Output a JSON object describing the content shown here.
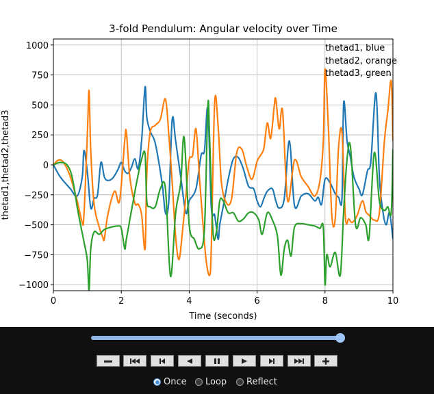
{
  "chart_data": {
    "type": "line",
    "title": "3-fold Pendulum: Angular velocity over Time",
    "xlabel": "Time (seconds)",
    "ylabel": "thetad1,thetad2,thetad3",
    "xlim": [
      0,
      10
    ],
    "ylim": [
      -1050,
      1050
    ],
    "xticks": [
      0,
      2,
      4,
      6,
      8,
      10
    ],
    "yticks": [
      -1000,
      -750,
      -500,
      -250,
      0,
      250,
      500,
      750,
      1000
    ],
    "xtick_labels": [
      "0",
      "2",
      "4",
      "6",
      "8",
      "10"
    ],
    "ytick_labels": [
      "−1000",
      "−750",
      "−500",
      "−250",
      "0",
      "250",
      "500",
      "750",
      "1000"
    ],
    "grid": true,
    "annotation": [
      "thetad1, blue",
      "thetad2, orange",
      "thetad3, green"
    ],
    "series": [
      {
        "color": "#1f77b4",
        "x": [
          0,
          0.2,
          0.5,
          0.7,
          0.85,
          0.9,
          1.0,
          1.1,
          1.2,
          1.3,
          1.4,
          1.5,
          1.6,
          1.75,
          1.9,
          2.0,
          2.1,
          2.2,
          2.3,
          2.4,
          2.5,
          2.6,
          2.7,
          2.75,
          2.85,
          3.0,
          3.2,
          3.3,
          3.4,
          3.5,
          3.6,
          3.75,
          3.9,
          4.0,
          4.2,
          4.35,
          4.45,
          4.55,
          4.65,
          4.75,
          4.85,
          4.9,
          5.0,
          5.15,
          5.3,
          5.45,
          5.6,
          5.75,
          5.9,
          6.0,
          6.1,
          6.2,
          6.3,
          6.45,
          6.55,
          6.65,
          6.8,
          6.95,
          7.1,
          7.3,
          7.5,
          7.7,
          7.8,
          7.9,
          8.0,
          8.15,
          8.3,
          8.4,
          8.5,
          8.55,
          8.65,
          8.75,
          8.85,
          9.0,
          9.1,
          9.25,
          9.35,
          9.5,
          9.6,
          9.7,
          9.8,
          9.9,
          10.0
        ],
        "y": [
          0,
          -100,
          -200,
          -260,
          -100,
          120,
          -60,
          -360,
          -280,
          -250,
          20,
          -100,
          -130,
          -110,
          -40,
          20,
          -50,
          -70,
          -20,
          50,
          -30,
          210,
          650,
          400,
          280,
          180,
          -150,
          -400,
          -300,
          380,
          200,
          -100,
          -400,
          -300,
          -200,
          80,
          120,
          470,
          -350,
          -420,
          -620,
          -500,
          -350,
          -120,
          50,
          60,
          -40,
          -180,
          -200,
          -300,
          -350,
          -280,
          -220,
          -200,
          -300,
          -360,
          -280,
          200,
          -340,
          -260,
          -240,
          -300,
          -270,
          -330,
          -120,
          -150,
          -240,
          -270,
          -280,
          520,
          200,
          60,
          -100,
          -200,
          -250,
          -50,
          30,
          600,
          -100,
          -380,
          -500,
          -400,
          -620
        ]
      },
      {
        "color": "#ff7f0e",
        "x": [
          0,
          0.15,
          0.3,
          0.5,
          0.7,
          0.85,
          0.9,
          1.0,
          1.05,
          1.1,
          1.2,
          1.35,
          1.45,
          1.5,
          1.6,
          1.8,
          1.95,
          2.1,
          2.15,
          2.25,
          2.4,
          2.5,
          2.6,
          2.7,
          2.75,
          2.85,
          3.0,
          3.15,
          3.3,
          3.4,
          3.5,
          3.6,
          3.7,
          3.8,
          3.9,
          4.0,
          4.1,
          4.2,
          4.3,
          4.4,
          4.5,
          4.6,
          4.65,
          4.75,
          4.85,
          4.95,
          5.1,
          5.25,
          5.4,
          5.55,
          5.7,
          5.85,
          6.0,
          6.1,
          6.2,
          6.3,
          6.4,
          6.5,
          6.55,
          6.65,
          6.75,
          6.9,
          7.1,
          7.3,
          7.5,
          7.7,
          7.85,
          7.95,
          8.0,
          8.1,
          8.2,
          8.3,
          8.4,
          8.5,
          8.6,
          8.7,
          8.8,
          8.95,
          9.1,
          9.2,
          9.3,
          9.45,
          9.6,
          9.75,
          9.85,
          9.95,
          10.0
        ],
        "y": [
          0,
          40,
          20,
          -100,
          -300,
          -480,
          -420,
          250,
          620,
          120,
          -330,
          -520,
          -600,
          -620,
          -420,
          -220,
          -300,
          200,
          270,
          -100,
          -320,
          -330,
          -420,
          -700,
          -80,
          270,
          330,
          380,
          550,
          250,
          -150,
          -600,
          -790,
          -560,
          -270,
          40,
          80,
          300,
          -100,
          -470,
          -800,
          -920,
          -700,
          520,
          330,
          -150,
          -320,
          -280,
          100,
          130,
          -20,
          -120,
          30,
          80,
          140,
          350,
          220,
          480,
          550,
          300,
          450,
          -300,
          40,
          -100,
          -180,
          -260,
          -130,
          200,
          800,
          300,
          -420,
          -450,
          150,
          270,
          -440,
          -450,
          -480,
          -420,
          -300,
          -390,
          -420,
          -460,
          -400,
          200,
          450,
          700,
          200
        ]
      },
      {
        "color": "#2ca02c",
        "x": [
          0,
          0.2,
          0.4,
          0.55,
          0.7,
          0.8,
          0.9,
          1.0,
          1.05,
          1.1,
          1.2,
          1.35,
          1.5,
          1.7,
          1.9,
          2.0,
          2.1,
          2.15,
          2.3,
          2.45,
          2.6,
          2.7,
          2.75,
          2.85,
          3.0,
          3.15,
          3.3,
          3.45,
          3.6,
          3.75,
          3.85,
          4.0,
          4.15,
          4.3,
          4.45,
          4.55,
          4.6,
          4.7,
          4.8,
          4.9,
          5.0,
          5.15,
          5.3,
          5.45,
          5.6,
          5.75,
          5.9,
          6.05,
          6.15,
          6.3,
          6.45,
          6.6,
          6.7,
          6.8,
          6.9,
          7.0,
          7.1,
          7.3,
          7.5,
          7.7,
          7.85,
          7.95,
          8.0,
          8.05,
          8.15,
          8.3,
          8.45,
          8.55,
          8.65,
          8.75,
          8.9,
          9.05,
          9.2,
          9.3,
          9.45,
          9.6,
          9.75,
          9.85,
          9.95,
          10.0
        ],
        "y": [
          0,
          20,
          0,
          -100,
          -350,
          -500,
          -640,
          -800,
          -1050,
          -700,
          -560,
          -580,
          -540,
          -520,
          -510,
          -530,
          -700,
          -620,
          -380,
          -150,
          50,
          90,
          -300,
          -350,
          -350,
          -200,
          -200,
          -930,
          -400,
          -150,
          230,
          -500,
          -620,
          -700,
          -530,
          500,
          230,
          -560,
          -560,
          -300,
          -300,
          -400,
          -400,
          -470,
          -450,
          -400,
          -400,
          -460,
          -580,
          -400,
          -460,
          -600,
          -920,
          -700,
          -630,
          -760,
          -520,
          -490,
          -500,
          -510,
          -530,
          -520,
          -1000,
          -750,
          -850,
          -730,
          -920,
          -380,
          50,
          150,
          -500,
          -440,
          -500,
          -600,
          100,
          -300,
          -380,
          -350,
          -400,
          130
        ]
      }
    ]
  },
  "animation_controls": {
    "slider_value": 1.0,
    "buttons": [
      "minus-icon",
      "first-frame-icon",
      "step-back-icon",
      "play-reverse-icon",
      "pause-icon",
      "play-icon",
      "step-forward-icon",
      "last-frame-icon",
      "plus-icon"
    ],
    "modes": [
      {
        "label": "Once",
        "checked": true
      },
      {
        "label": "Loop",
        "checked": false
      },
      {
        "label": "Reflect",
        "checked": false
      }
    ]
  }
}
